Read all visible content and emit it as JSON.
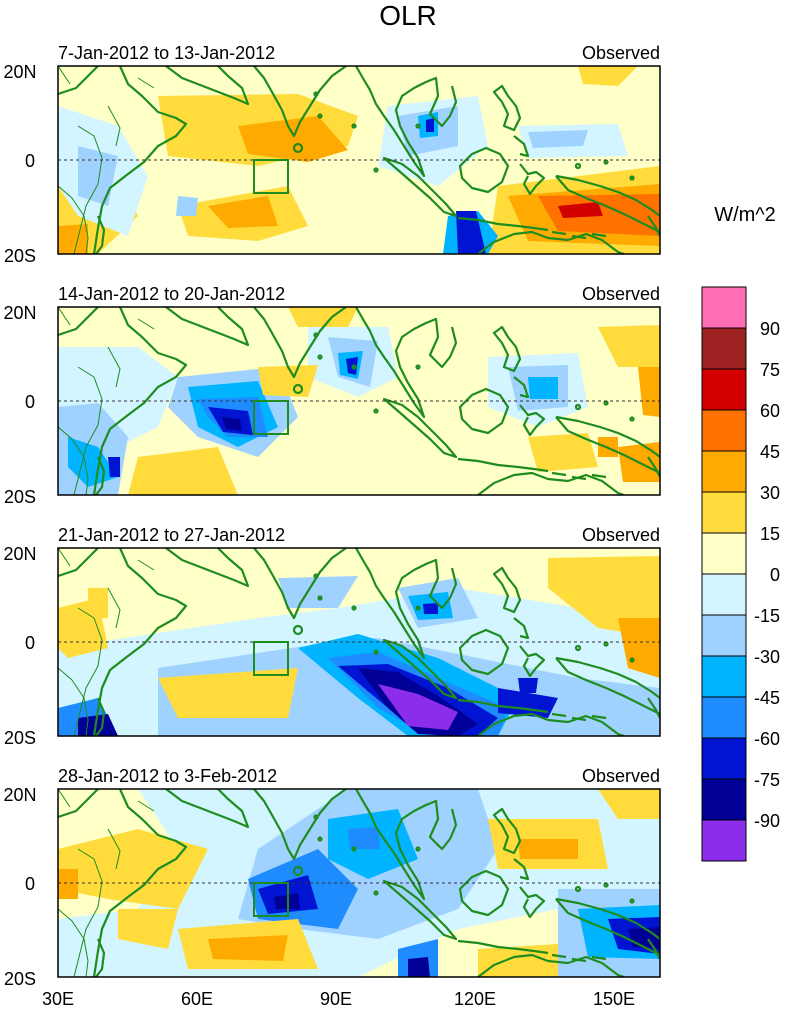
{
  "title": "OLR",
  "units": "W/m^2",
  "panels": [
    {
      "date_range": "7-Jan-2012 to 13-Jan-2012",
      "source": "Observed"
    },
    {
      "date_range": "14-Jan-2012 to 20-Jan-2012",
      "source": "Observed"
    },
    {
      "date_range": "21-Jan-2012 to 27-Jan-2012",
      "source": "Observed"
    },
    {
      "date_range": "28-Jan-2012 to 3-Feb-2012",
      "source": "Observed"
    }
  ],
  "lat_labels": [
    "20N",
    "0",
    "20S"
  ],
  "lon_labels": [
    "30E",
    "60E",
    "90E",
    "120E",
    "150E"
  ],
  "colorbar": {
    "labels": [
      "90",
      "75",
      "60",
      "45",
      "30",
      "15",
      "0",
      "-15",
      "-30",
      "-45",
      "-60",
      "-75",
      "-90"
    ],
    "colors": [
      "#ff6eb4",
      "#9e2222",
      "#d20000",
      "#ff7200",
      "#ffaa00",
      "#ffdc3c",
      "#ffffc8",
      "#d2f5ff",
      "#a0d2ff",
      "#00b4ff",
      "#1e8cff",
      "#0014d2",
      "#000096",
      "#8c2deb"
    ]
  },
  "colors": {
    "land_outline": "#1e8c1e",
    "box_outline": "#1e8c1e",
    "equator": "#333333"
  }
}
